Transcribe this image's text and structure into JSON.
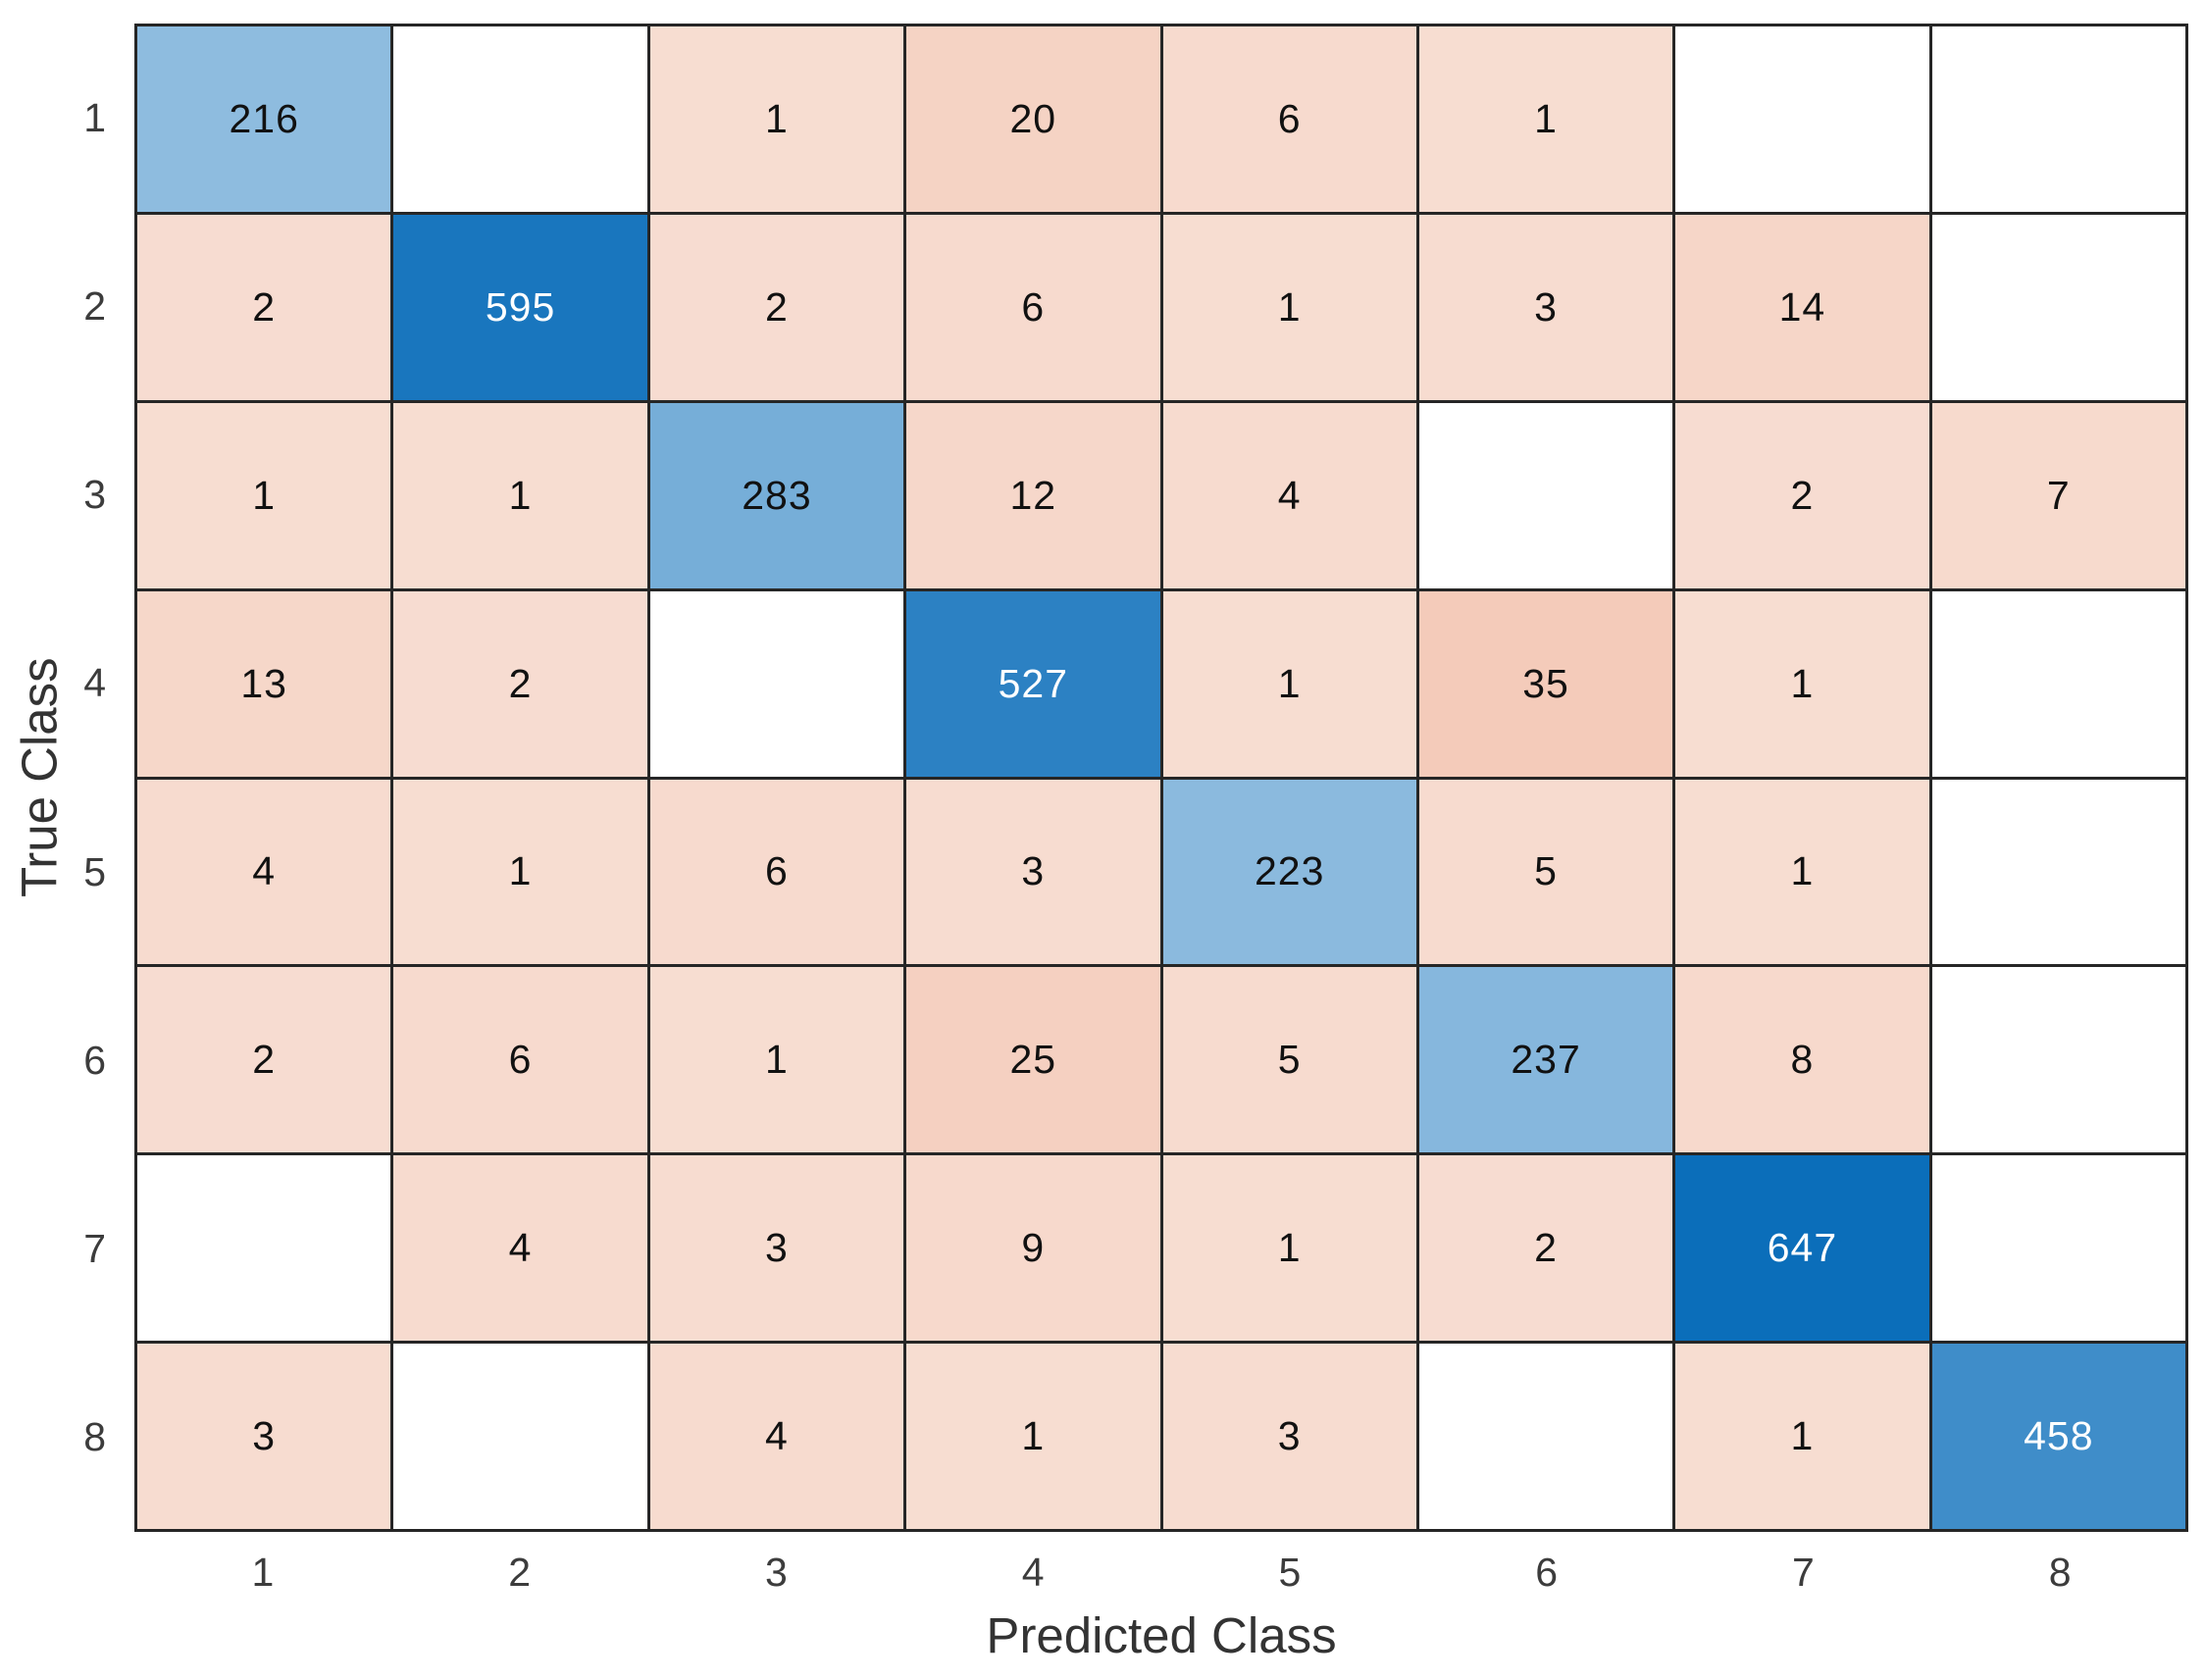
{
  "chart_data": {
    "type": "heatmap",
    "subtype": "confusion-matrix",
    "title": "",
    "xlabel": "Predicted Class",
    "ylabel": "True Class",
    "x_tick_labels": [
      "1",
      "2",
      "3",
      "4",
      "5",
      "6",
      "7",
      "8"
    ],
    "y_tick_labels": [
      "1",
      "2",
      "3",
      "4",
      "5",
      "6",
      "7",
      "8"
    ],
    "matrix": [
      [
        216,
        null,
        1,
        20,
        6,
        1,
        null,
        null
      ],
      [
        2,
        595,
        2,
        6,
        1,
        3,
        14,
        null
      ],
      [
        1,
        1,
        283,
        12,
        4,
        null,
        2,
        7
      ],
      [
        13,
        2,
        null,
        527,
        1,
        35,
        1,
        null
      ],
      [
        4,
        1,
        6,
        3,
        223,
        5,
        1,
        null
      ],
      [
        2,
        6,
        1,
        25,
        5,
        237,
        8,
        null
      ],
      [
        null,
        4,
        3,
        9,
        1,
        2,
        647,
        null
      ],
      [
        3,
        null,
        4,
        1,
        3,
        null,
        1,
        458
      ]
    ],
    "layout": {
      "grid_on": true,
      "legend": "none"
    },
    "colors": {
      "diagonal_base": "#0B6EBA",
      "offdiagonal_base": "#D9531A",
      "empty_cell": "#FFFFFF",
      "grid_line": "#262626",
      "cell_text_dark": "#111111",
      "cell_text_light": "#FFFFFF",
      "axis_text": "#3C3C3C",
      "axis_label_text": "#333333"
    }
  }
}
